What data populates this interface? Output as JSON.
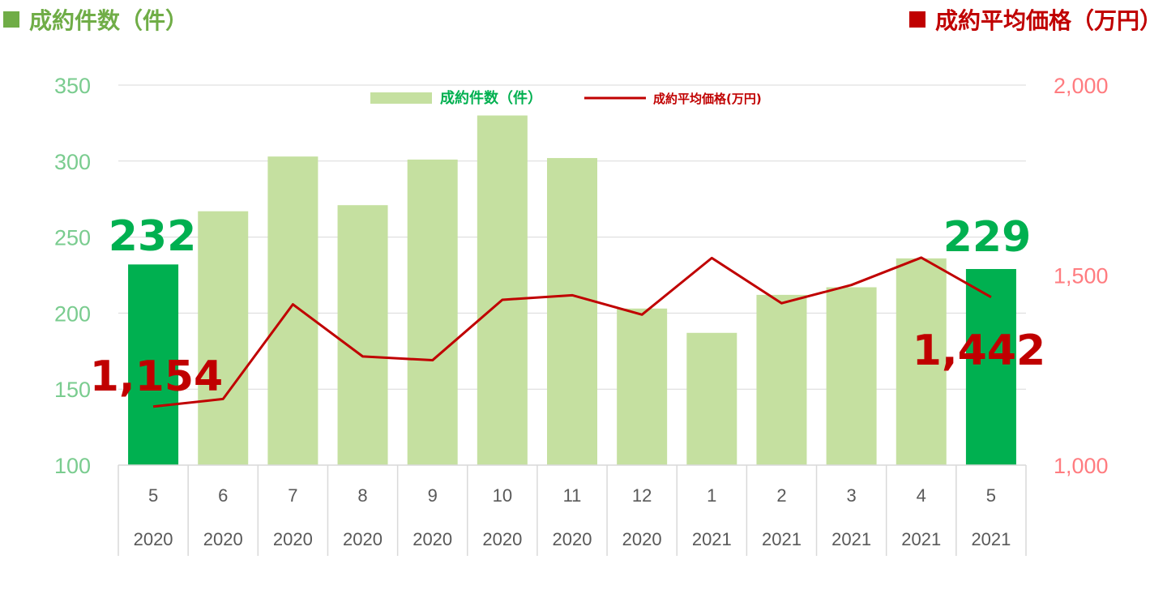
{
  "header": {
    "left_title": "成約件数（件）",
    "right_title": "成約平均価格（万円）",
    "left_color": "#70ad47",
    "right_color": "#c00000"
  },
  "chart_data": {
    "type": "bar",
    "categories": [
      {
        "month": "5",
        "year": "2020"
      },
      {
        "month": "6",
        "year": "2020"
      },
      {
        "month": "7",
        "year": "2020"
      },
      {
        "month": "8",
        "year": "2020"
      },
      {
        "month": "9",
        "year": "2020"
      },
      {
        "month": "10",
        "year": "2020"
      },
      {
        "month": "11",
        "year": "2020"
      },
      {
        "month": "12",
        "year": "2020"
      },
      {
        "month": "1",
        "year": "2021"
      },
      {
        "month": "2",
        "year": "2021"
      },
      {
        "month": "3",
        "year": "2021"
      },
      {
        "month": "4",
        "year": "2021"
      },
      {
        "month": "5",
        "year": "2021"
      }
    ],
    "series": [
      {
        "name": "成約件数（件）",
        "type": "bar",
        "axis": "left",
        "values": [
          232,
          267,
          303,
          271,
          301,
          330,
          302,
          203,
          187,
          212,
          217,
          236,
          229
        ],
        "color": "#c5e0a0",
        "highlight_color": "#00b050",
        "highlight_indices": [
          0,
          12
        ]
      },
      {
        "name": "成約平均価格(万円)",
        "type": "line",
        "axis": "right",
        "values": [
          1154,
          1174,
          1423,
          1286,
          1276,
          1435,
          1447,
          1396,
          1545,
          1426,
          1474,
          1546,
          1442
        ],
        "color": "#c00000"
      }
    ],
    "y_left": {
      "ylim": [
        100,
        350
      ],
      "ticks": [
        "100",
        "150",
        "200",
        "250",
        "300",
        "350"
      ],
      "color": "#7acc8f"
    },
    "y_right": {
      "ylim": [
        1000,
        2000
      ],
      "ticks": [
        "1,000",
        "1,500",
        "2,000"
      ],
      "color": "#ff7c80"
    },
    "grid": true,
    "legend_position": "top-center",
    "annotations": [
      {
        "text": "232",
        "series": 0,
        "index": 0,
        "color": "#00b050"
      },
      {
        "text": "229",
        "series": 0,
        "index": 12,
        "color": "#00b050"
      },
      {
        "text": "1,154",
        "series": 1,
        "index": 0,
        "color": "#c00000"
      },
      {
        "text": "1,442",
        "series": 1,
        "index": 12,
        "color": "#c00000"
      }
    ]
  }
}
